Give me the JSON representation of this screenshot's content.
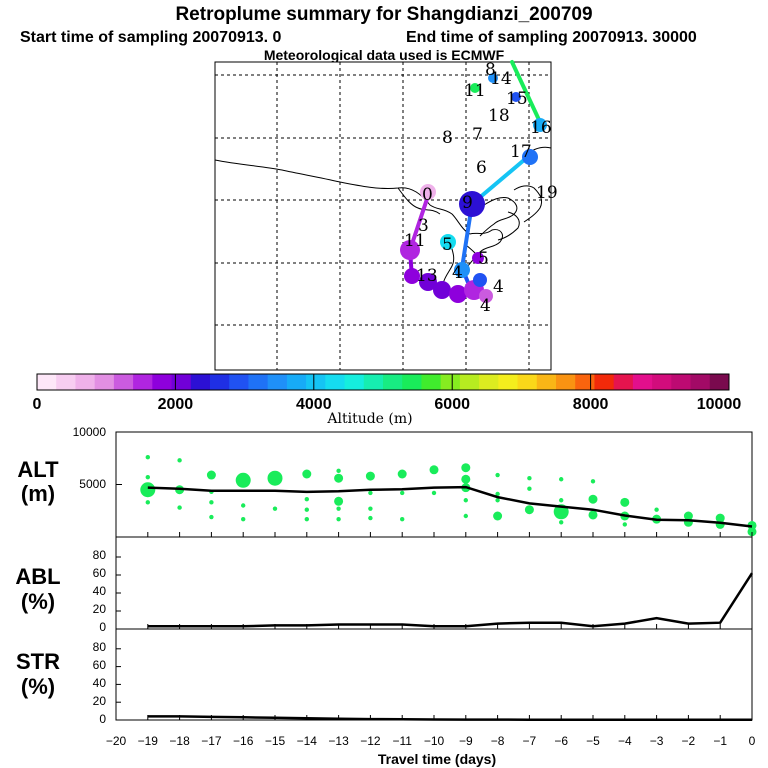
{
  "header": {
    "title": "Retroplume summary for Shangdianzi_200709",
    "start_label": "Start time of sampling 20070913.    0",
    "end_label": "End time of sampling 20070913. 30000",
    "met_label": "Meteorological data used is ECMWF"
  },
  "colorbar": {
    "ticks": [
      "0",
      "2000",
      "4000",
      "6000",
      "8000",
      "10000"
    ],
    "label": "Altitude (m)",
    "colors": [
      "#fde7f8",
      "#f7cdf1",
      "#efb1ea",
      "#e28fe3",
      "#cb5bdf",
      "#b025e0",
      "#8e00dc",
      "#7100d8",
      "#2c10d4",
      "#1f2fe4",
      "#2052f2",
      "#1f72f6",
      "#1f90f8",
      "#17abf7",
      "#15c4f4",
      "#15dcf0",
      "#15eede",
      "#16eeb0",
      "#18ec82",
      "#19ec5a",
      "#40ec2d",
      "#86ec20",
      "#b7ec20",
      "#dcec20",
      "#f4ee1d",
      "#fad819",
      "#f9b616",
      "#f99312",
      "#f9640e",
      "#f22a0a",
      "#e5144e",
      "#e30f8c",
      "#d20c7c",
      "#bd0a72",
      "#a20a66",
      "#7a0a4e"
    ]
  },
  "map": {
    "labels": [
      {
        "t": "8"
      },
      {
        "t": "14"
      },
      {
        "t": "11"
      },
      {
        "t": "15"
      },
      {
        "t": "16"
      },
      {
        "t": "18"
      },
      {
        "t": "8"
      },
      {
        "t": "7"
      },
      {
        "t": "17"
      },
      {
        "t": "6"
      },
      {
        "t": "19"
      },
      {
        "t": "9"
      },
      {
        "t": "0"
      },
      {
        "t": "3"
      },
      {
        "t": "11"
      },
      {
        "t": "5"
      },
      {
        "t": "5"
      },
      {
        "t": "4"
      },
      {
        "t": "13"
      },
      {
        "t": "4"
      },
      {
        "t": "4"
      }
    ]
  },
  "panels": {
    "alt": {
      "name": "ALT",
      "unit": "(m)",
      "yticks": [
        "10000",
        "5000"
      ]
    },
    "abl": {
      "name": "ABL",
      "unit": "(%)",
      "yticks": [
        "80",
        "60",
        "40",
        "20",
        "0"
      ]
    },
    "str": {
      "name": "STR",
      "unit": "(%)",
      "yticks": [
        "80",
        "60",
        "40",
        "20",
        "0"
      ]
    }
  },
  "xaxis": {
    "ticks": [
      "−20",
      "−19",
      "−18",
      "−17",
      "−16",
      "−15",
      "−14",
      "−13",
      "−12",
      "−11",
      "−10",
      "−9",
      "−8",
      "−7",
      "−6",
      "−5",
      "−4",
      "−3",
      "−2",
      "−1",
      "0"
    ],
    "label": "Travel time (days)"
  },
  "chart_data": [
    {
      "type": "line",
      "title": "ALT",
      "ylabel": "(m)",
      "xlabel": "Travel time (days)",
      "xlim": [
        -20,
        0
      ],
      "ylim": [
        0,
        10000
      ],
      "x": [
        -19,
        -18,
        -17,
        -16,
        -15,
        -14,
        -13,
        -12,
        -11,
        -10,
        -9,
        -8,
        -7,
        -6,
        -5,
        -4,
        -3,
        -2,
        -1,
        0
      ],
      "series": [
        {
          "name": "mean altitude",
          "values": [
            4700,
            4600,
            4400,
            4400,
            4400,
            4300,
            4350,
            4500,
            4550,
            4700,
            4750,
            3800,
            3200,
            2900,
            2600,
            2050,
            1650,
            1600,
            1350,
            1000
          ]
        }
      ],
      "scatter": [
        {
          "x": -19,
          "y": 7600,
          "s": 1
        },
        {
          "x": -19,
          "y": 5700,
          "s": 1
        },
        {
          "x": -19,
          "y": 4500,
          "s": 3
        },
        {
          "x": -19,
          "y": 3300,
          "s": 1
        },
        {
          "x": -18,
          "y": 7300,
          "s": 1
        },
        {
          "x": -18,
          "y": 4500,
          "s": 2
        },
        {
          "x": -18,
          "y": 2800,
          "s": 1
        },
        {
          "x": -17,
          "y": 5900,
          "s": 2
        },
        {
          "x": -17,
          "y": 4300,
          "s": 1
        },
        {
          "x": -17,
          "y": 3300,
          "s": 1
        },
        {
          "x": -17,
          "y": 1900,
          "s": 1
        },
        {
          "x": -16,
          "y": 5400,
          "s": 3
        },
        {
          "x": -16,
          "y": 3000,
          "s": 1
        },
        {
          "x": -16,
          "y": 1700,
          "s": 1
        },
        {
          "x": -15,
          "y": 5600,
          "s": 3
        },
        {
          "x": -15,
          "y": 2700,
          "s": 1
        },
        {
          "x": -14,
          "y": 6000,
          "s": 2
        },
        {
          "x": -14,
          "y": 3600,
          "s": 1
        },
        {
          "x": -14,
          "y": 2600,
          "s": 1
        },
        {
          "x": -14,
          "y": 1700,
          "s": 1
        },
        {
          "x": -13,
          "y": 6300,
          "s": 1
        },
        {
          "x": -13,
          "y": 5600,
          "s": 2
        },
        {
          "x": -13,
          "y": 3400,
          "s": 2
        },
        {
          "x": -13,
          "y": 2700,
          "s": 1
        },
        {
          "x": -13,
          "y": 1700,
          "s": 1
        },
        {
          "x": -12,
          "y": 5800,
          "s": 2
        },
        {
          "x": -12,
          "y": 4200,
          "s": 1
        },
        {
          "x": -12,
          "y": 2700,
          "s": 1
        },
        {
          "x": -12,
          "y": 1800,
          "s": 1
        },
        {
          "x": -11,
          "y": 6000,
          "s": 2
        },
        {
          "x": -11,
          "y": 4200,
          "s": 1
        },
        {
          "x": -11,
          "y": 1700,
          "s": 1
        },
        {
          "x": -10,
          "y": 6400,
          "s": 2
        },
        {
          "x": -10,
          "y": 4200,
          "s": 1
        },
        {
          "x": -9,
          "y": 6600,
          "s": 2
        },
        {
          "x": -9,
          "y": 5500,
          "s": 2
        },
        {
          "x": -9,
          "y": 4700,
          "s": 2
        },
        {
          "x": -9,
          "y": 3500,
          "s": 1
        },
        {
          "x": -9,
          "y": 2000,
          "s": 1
        },
        {
          "x": -8,
          "y": 5900,
          "s": 1
        },
        {
          "x": -8,
          "y": 4100,
          "s": 1
        },
        {
          "x": -8,
          "y": 3500,
          "s": 1
        },
        {
          "x": -8,
          "y": 2000,
          "s": 2
        },
        {
          "x": -7,
          "y": 5600,
          "s": 1
        },
        {
          "x": -7,
          "y": 4600,
          "s": 1
        },
        {
          "x": -7,
          "y": 2600,
          "s": 2
        },
        {
          "x": -6,
          "y": 5500,
          "s": 1
        },
        {
          "x": -6,
          "y": 3500,
          "s": 1
        },
        {
          "x": -6,
          "y": 2400,
          "s": 3
        },
        {
          "x": -6,
          "y": 1400,
          "s": 1
        },
        {
          "x": -5,
          "y": 5300,
          "s": 1
        },
        {
          "x": -5,
          "y": 3600,
          "s": 2
        },
        {
          "x": -5,
          "y": 2100,
          "s": 2
        },
        {
          "x": -4,
          "y": 3300,
          "s": 2
        },
        {
          "x": -4,
          "y": 2000,
          "s": 2
        },
        {
          "x": -4,
          "y": 1200,
          "s": 1
        },
        {
          "x": -3,
          "y": 2600,
          "s": 1
        },
        {
          "x": -3,
          "y": 1700,
          "s": 2
        },
        {
          "x": -2,
          "y": 2000,
          "s": 2
        },
        {
          "x": -2,
          "y": 1400,
          "s": 2
        },
        {
          "x": -1,
          "y": 1800,
          "s": 2
        },
        {
          "x": -1,
          "y": 1200,
          "s": 2
        },
        {
          "x": 0,
          "y": 1100,
          "s": 2
        },
        {
          "x": 0,
          "y": 500,
          "s": 2
        }
      ]
    },
    {
      "type": "line",
      "title": "ABL",
      "ylabel": "(%)",
      "xlabel": "Travel time (days)",
      "xlim": [
        -20,
        0
      ],
      "ylim": [
        0,
        100
      ],
      "x": [
        -19,
        -18,
        -17,
        -16,
        -15,
        -14,
        -13,
        -12,
        -11,
        -10,
        -9,
        -8,
        -7,
        -6,
        -5,
        -4,
        -3,
        -2,
        -1,
        0
      ],
      "series": [
        {
          "name": "ABL fraction",
          "values": [
            3,
            3,
            3,
            3,
            4,
            4,
            5,
            5,
            5,
            3,
            3,
            6,
            7,
            7,
            3,
            6,
            12,
            6,
            7,
            62
          ]
        }
      ]
    },
    {
      "type": "line",
      "title": "STR",
      "ylabel": "(%)",
      "xlabel": "Travel time (days)",
      "xlim": [
        -20,
        0
      ],
      "ylim": [
        0,
        100
      ],
      "x": [
        -19,
        -18,
        -17,
        -16,
        -15,
        -14,
        -13,
        -12,
        -11,
        -10,
        -9,
        -8,
        -7,
        -6,
        -5,
        -4,
        -3,
        -2,
        -1,
        0
      ],
      "series": [
        {
          "name": "STR fraction",
          "values": [
            4,
            4,
            3.5,
            3,
            2.5,
            2,
            1.5,
            1,
            0.8,
            0.6,
            0.5,
            0.4,
            0.3,
            0.3,
            0.3,
            0.3,
            0.3,
            0.3,
            0.3,
            0.3
          ]
        }
      ]
    }
  ]
}
